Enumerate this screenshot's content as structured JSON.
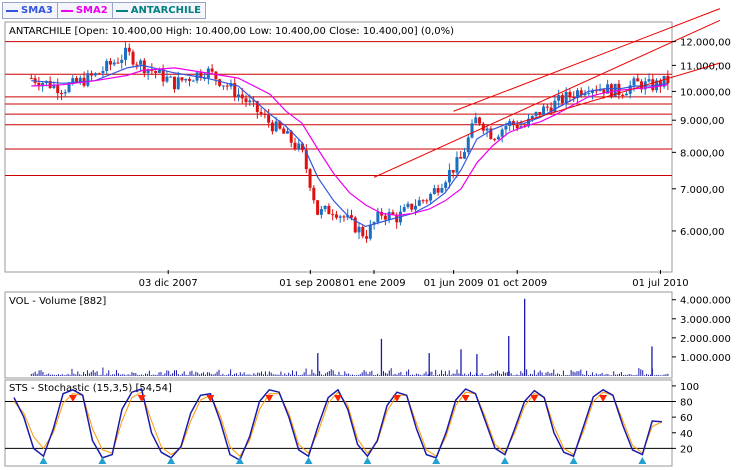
{
  "legend": [
    {
      "label": "SMA3",
      "color": "#3355dd"
    },
    {
      "label": "SMA2",
      "color": "#ee00ee"
    },
    {
      "label": "ANTARCHILE",
      "color": "#008080"
    }
  ],
  "colors": {
    "up": "#1a6fc4",
    "down": "#dd1111",
    "grid_h": "#cc0000",
    "trend": "#ee0000",
    "volume": "#1a1aaa",
    "stoch_k": "#1a1aaa",
    "stoch_d": "#ff9900",
    "tri_up": "#22a0d0",
    "tri_down": "#ff2200"
  },
  "price_panel": {
    "title": "ANTARCHILE [Open: 10.400,00  High: 10.400,00  Low: 10.400,00  Close: 10.400,00] (0,0%)"
  },
  "volume_panel": {
    "title": "VOL - Volume [882]"
  },
  "stoch_panel": {
    "title": "STS - Stochastic (15,3,5) [54,54]"
  },
  "chart_data": [
    {
      "type": "line",
      "title": "ANTARCHILE",
      "x_ticks": [
        "03 dic 2007",
        "01 sep 2008",
        "01 ene 2009",
        "01 jun 2009",
        "01 oct 2009",
        "01 jul 2010"
      ],
      "y_ticks": [
        "6.000,00",
        "7.000,00",
        "8.000,00",
        "9.000,00",
        "10.000,00",
        "11.000,00",
        "12.000,00"
      ],
      "scale": "log",
      "ylim": [
        5200,
        12800
      ],
      "horizontal_levels": [
        12000,
        10650,
        9800,
        9550,
        9200,
        8850,
        8100,
        7350
      ],
      "trend_lines": [
        {
          "from": [
            "01 ene 2009",
            7300
          ],
          "to": [
            "01 jul 2010",
            11750
          ]
        },
        {
          "from": [
            "01 jun 2009",
            9300
          ],
          "to": [
            "01 jul 2010",
            12450
          ]
        },
        {
          "from": [
            "01 oct 2009",
            8900
          ],
          "to": [
            "01 jul 2010",
            10400
          ]
        }
      ],
      "series": [
        {
          "name": "ANTARCHILE",
          "x": [
            "mar 2007",
            "may 2007",
            "jul 2007",
            "sep 2007",
            "oct 2007",
            "dic 2007",
            "feb 2008",
            "abr 2008",
            "jun 2008",
            "jul 2008",
            "ago 2008",
            "sep 2008",
            "oct 2008",
            "nov 2008",
            "dic 2008",
            "ene 2009",
            "feb 2009",
            "mar 2009",
            "abr 2009",
            "may 2009",
            "jun 2009",
            "jul 2009",
            "ago 2009",
            "sep 2009",
            "oct 2009",
            "nov 2009",
            "dic 2009",
            "ene 2010",
            "feb 2010",
            "mar 2010",
            "abr 2010",
            "may 2010",
            "jun 2010",
            "jul 2010"
          ],
          "values": [
            10500,
            10100,
            10600,
            11500,
            11000,
            10300,
            10800,
            9900,
            8900,
            8500,
            8000,
            6400,
            6500,
            6200,
            5900,
            6400,
            6300,
            6600,
            6800,
            7300,
            7800,
            9100,
            8500,
            8900,
            8800,
            9300,
            9600,
            9900,
            10200,
            10100,
            10000,
            10300,
            10200,
            10400
          ]
        },
        {
          "name": "SMA3",
          "values": [
            10400,
            10300,
            10400,
            10900,
            11000,
            10700,
            10500,
            10200,
            9200,
            8800,
            8300,
            7300,
            6700,
            6300,
            6100,
            6200,
            6300,
            6400,
            6600,
            6900,
            7500,
            8400,
            8700,
            8900,
            8900,
            9100,
            9400,
            9700,
            10000,
            10100,
            10100,
            10200,
            10200,
            10300
          ]
        },
        {
          "name": "SMA2",
          "values": [
            10200,
            10250,
            10400,
            10600,
            10800,
            10900,
            10700,
            10500,
            9900,
            9300,
            8900,
            8100,
            7400,
            6900,
            6600,
            6400,
            6350,
            6400,
            6500,
            6700,
            7000,
            7700,
            8200,
            8600,
            8800,
            8950,
            9200,
            9500,
            9800,
            9950,
            10050,
            10100,
            10150,
            10250
          ]
        }
      ]
    },
    {
      "type": "bar",
      "title": "VOL - Volume [882]",
      "y_ticks": [
        "1.000.000",
        "2.000.000",
        "3.000.000",
        "4.000.000"
      ],
      "ylim": [
        0,
        4300000
      ],
      "spikes": [
        {
          "x": "sep 2008",
          "value": 1200000
        },
        {
          "x": "ene 2009",
          "value": 1950000
        },
        {
          "x": "abr 2009",
          "value": 1200000
        },
        {
          "x": "jun 2009",
          "value": 1400000
        },
        {
          "x": "jul 2009",
          "value": 1150000
        },
        {
          "x": "sep 2009",
          "value": 2100000
        },
        {
          "x": "oct 2009",
          "value": 4050000
        },
        {
          "x": "jun 2010",
          "value": 1550000
        }
      ]
    },
    {
      "type": "line",
      "title": "STS - Stochastic (15,3,5) [54,54]",
      "y_ticks": [
        "20",
        "40",
        "60",
        "80",
        "100"
      ],
      "ylim": [
        0,
        105
      ],
      "levels": [
        20,
        80
      ],
      "series": [
        {
          "name": "%K",
          "values": [
            85,
            60,
            20,
            10,
            45,
            90,
            95,
            88,
            30,
            8,
            12,
            70,
            92,
            96,
            40,
            15,
            8,
            22,
            65,
            88,
            90,
            55,
            12,
            5,
            35,
            80,
            95,
            92,
            60,
            18,
            10,
            50,
            85,
            95,
            70,
            25,
            10,
            30,
            75,
            92,
            88,
            45,
            12,
            8,
            40,
            82,
            96,
            90,
            55,
            20,
            12,
            45,
            80,
            94,
            85,
            40,
            15,
            10,
            48,
            86,
            95,
            88,
            50,
            18,
            12,
            55,
            54
          ]
        },
        {
          "name": "%D",
          "values": [
            80,
            65,
            35,
            20,
            40,
            78,
            90,
            88,
            45,
            18,
            14,
            55,
            85,
            92,
            55,
            22,
            12,
            20,
            55,
            82,
            88,
            62,
            22,
            10,
            30,
            70,
            90,
            90,
            65,
            25,
            14,
            42,
            78,
            92,
            75,
            32,
            14,
            28,
            68,
            88,
            88,
            52,
            18,
            10,
            35,
            75,
            92,
            90,
            60,
            25,
            15,
            40,
            74,
            90,
            86,
            48,
            20,
            12,
            42,
            80,
            92,
            88,
            56,
            24,
            14,
            48,
            54
          ]
        }
      ]
    }
  ]
}
